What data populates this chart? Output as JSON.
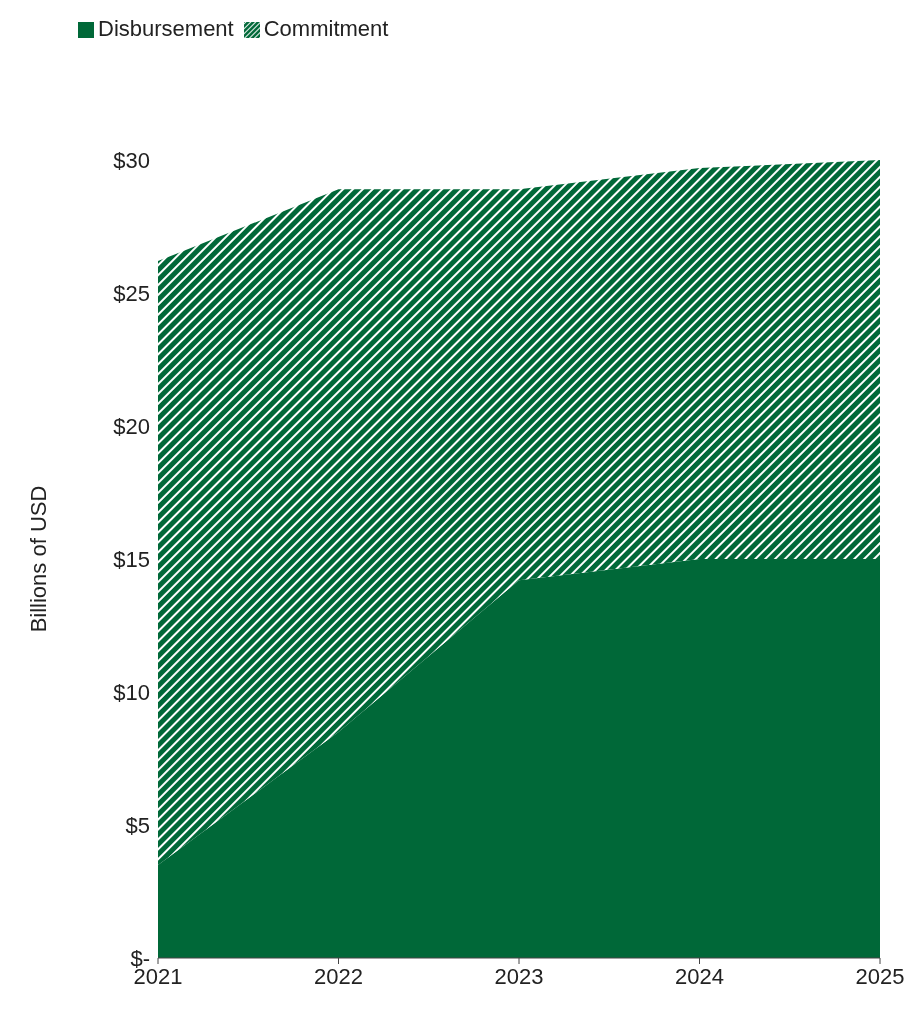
{
  "chart_data": {
    "type": "area",
    "stacked": true,
    "ylabel": "Billions of USD",
    "x": [
      2021,
      2022,
      2023,
      2024,
      2025
    ],
    "xlim": [
      2021,
      2025
    ],
    "xticks": [
      2021,
      2022,
      2023,
      2024,
      2025
    ],
    "ylim": [
      0,
      30
    ],
    "yticks": [
      {
        "value": 0,
        "label": "$-"
      },
      {
        "value": 5,
        "label": "$5"
      },
      {
        "value": 10,
        "label": "$10"
      },
      {
        "value": 15,
        "label": "$15"
      },
      {
        "value": 20,
        "label": "$20"
      },
      {
        "value": 25,
        "label": "$25"
      },
      {
        "value": 30,
        "label": "$30"
      }
    ],
    "legend": "top left",
    "series": [
      {
        "name": "Disbursement",
        "color": "#006838",
        "values": [
          3.5,
          8.5,
          14.2,
          15.0,
          15.0
        ]
      },
      {
        "name": "Commitment",
        "color": "#006838",
        "values": [
          22.7,
          20.4,
          14.7,
          14.7,
          15.0
        ]
      }
    ]
  }
}
